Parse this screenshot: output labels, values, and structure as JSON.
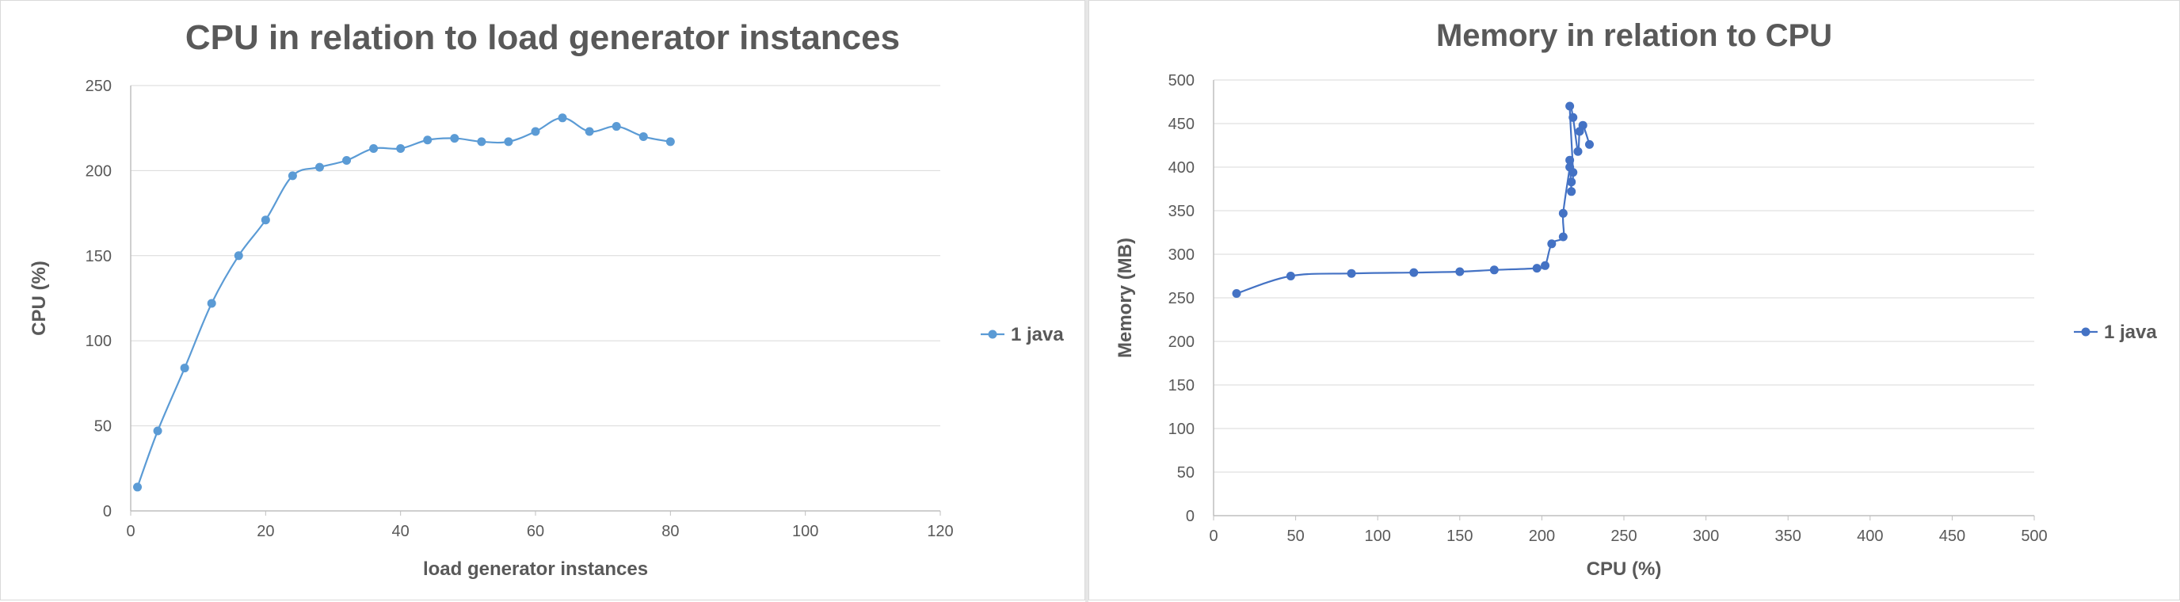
{
  "chart_data": [
    {
      "type": "line",
      "title": "CPU in relation to load generator instances",
      "xlabel": "load generator instances",
      "ylabel": "CPU (%)",
      "xlim": [
        0,
        120
      ],
      "ylim": [
        0,
        250
      ],
      "x_ticks": [
        0,
        20,
        40,
        60,
        80,
        100,
        120
      ],
      "y_ticks": [
        0,
        50,
        100,
        150,
        200,
        250
      ],
      "grid": "horizontal",
      "legend_position": "right",
      "color": "#5b9bd5",
      "series": [
        {
          "name": "1 java",
          "x": [
            1,
            4,
            8,
            12,
            16,
            20,
            24,
            28,
            32,
            36,
            40,
            44,
            48,
            52,
            56,
            60,
            64,
            68,
            72,
            76,
            80
          ],
          "y": [
            14,
            47,
            84,
            122,
            150,
            171,
            197,
            202,
            206,
            213,
            213,
            218,
            219,
            217,
            217,
            223,
            231,
            223,
            226,
            220,
            217
          ]
        }
      ]
    },
    {
      "type": "scatter",
      "title": "Memory in relation to  CPU",
      "xlabel": "CPU (%)",
      "ylabel": "Memory (MB)",
      "xlim": [
        0,
        500
      ],
      "ylim": [
        0,
        500
      ],
      "x_ticks": [
        0,
        50,
        100,
        150,
        200,
        250,
        300,
        350,
        400,
        450,
        500
      ],
      "y_ticks": [
        0,
        50,
        100,
        150,
        200,
        250,
        300,
        350,
        400,
        450,
        500
      ],
      "grid": "horizontal",
      "legend_position": "right",
      "color": "#4472c4",
      "series": [
        {
          "name": "1 java",
          "x": [
            14,
            47,
            84,
            122,
            150,
            171,
            197,
            202,
            206,
            213,
            213,
            217,
            217,
            218,
            218,
            219,
            217,
            219,
            222,
            223,
            225,
            229
          ],
          "y": [
            255,
            275,
            278,
            279,
            280,
            282,
            284,
            287,
            312,
            320,
            347,
            400,
            408,
            372,
            383,
            394,
            470,
            457,
            418,
            441,
            448,
            426
          ]
        }
      ]
    }
  ]
}
